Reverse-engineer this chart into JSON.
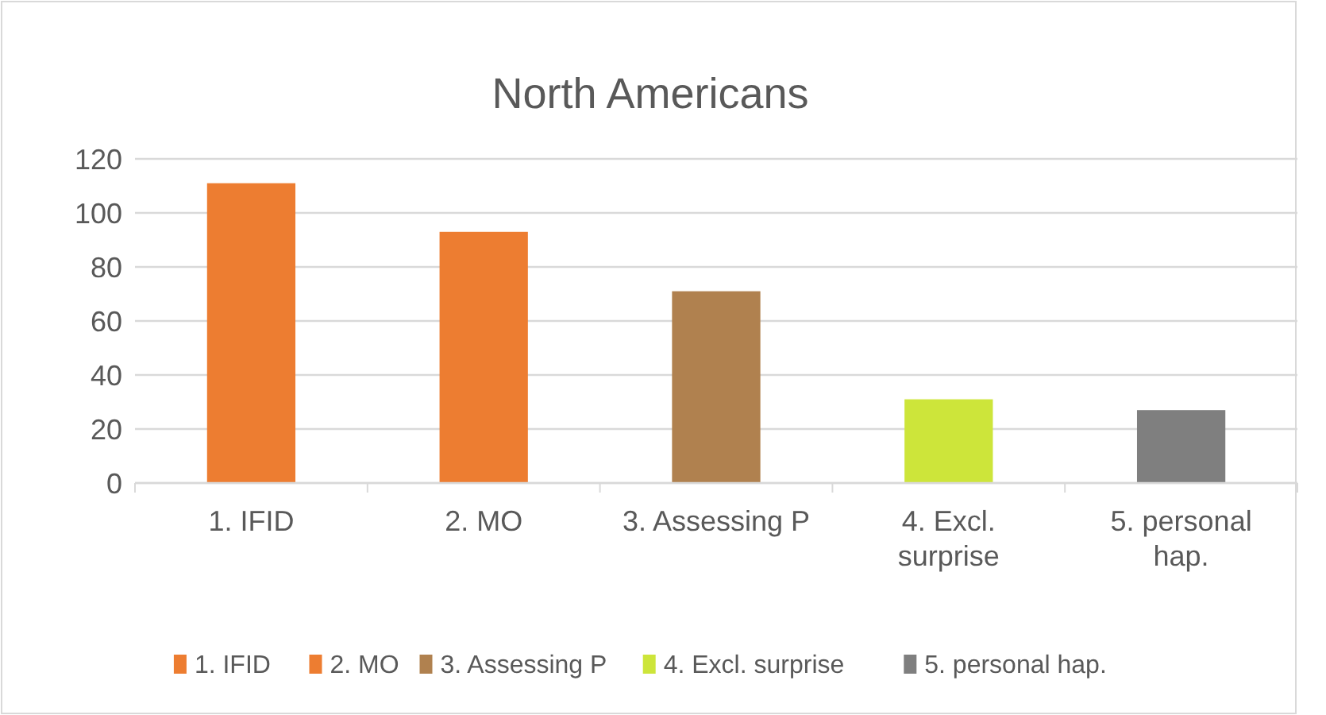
{
  "chart_data": {
    "type": "bar",
    "title": "North Americans",
    "categories": [
      "1. IFID",
      "2. MO",
      "3. Assessing P",
      "4. Excl. surprise",
      "5. personal hap."
    ],
    "stacked": true,
    "series": [
      {
        "name": "1. IFID",
        "color": "#ed7d31",
        "values": [
          111,
          null,
          null,
          null,
          null
        ]
      },
      {
        "name": "2. MO",
        "color": "#ed7d31",
        "values": [
          null,
          93,
          null,
          null,
          null
        ]
      },
      {
        "name": "3. Assessing P",
        "color": "#b0814f",
        "values": [
          null,
          null,
          71,
          null,
          null
        ]
      },
      {
        "name": "4. Excl. surprise",
        "color": "#cde53a",
        "values": [
          null,
          null,
          null,
          31,
          null
        ]
      },
      {
        "name": "5. personal hap.",
        "color": "#7f7f7f",
        "values": [
          null,
          null,
          null,
          null,
          27
        ]
      }
    ],
    "ylim": [
      0,
      120
    ],
    "yticks": [
      0,
      20,
      40,
      60,
      80,
      100,
      120
    ],
    "grid": "y",
    "legend": "bottom"
  }
}
